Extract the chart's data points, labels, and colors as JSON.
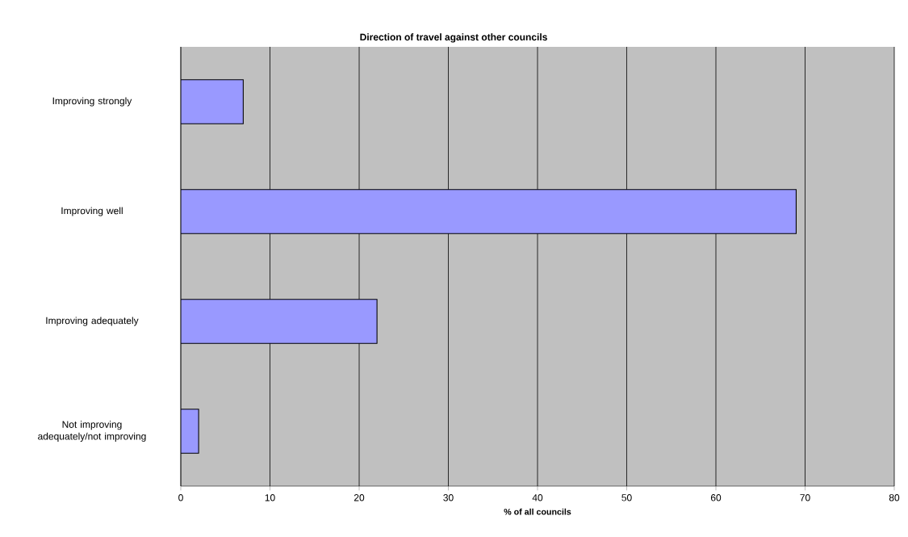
{
  "chart_data": {
    "type": "bar",
    "orientation": "horizontal",
    "title": "Direction of travel against other councils",
    "xlabel": "% of all councils",
    "categories": [
      "Improving strongly",
      "Improving well",
      "Improving adequately",
      "Not improving adequately/not improving"
    ],
    "values": [
      7,
      69,
      22,
      2
    ],
    "color": "#9999ff",
    "xlim": [
      0,
      80
    ],
    "xticks": [
      0,
      10,
      20,
      30,
      40,
      50,
      60,
      70,
      80
    ],
    "grid": "x"
  }
}
